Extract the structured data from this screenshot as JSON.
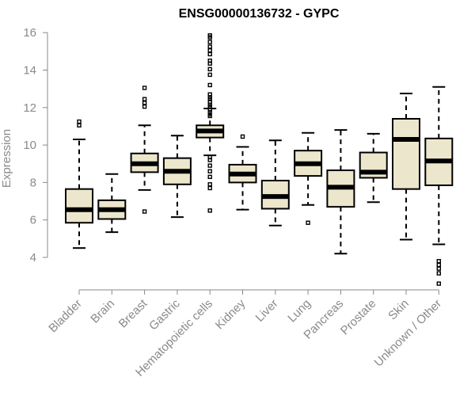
{
  "chart_data": {
    "type": "box",
    "title": "ENSG00000136732 - GYPC",
    "ylabel": "Expression",
    "xlabel": "",
    "ylim": [
      3.5,
      16.2
    ],
    "yticks": [
      4,
      6,
      8,
      10,
      12,
      14,
      16
    ],
    "fill_color": "#ece6cc",
    "grid": false,
    "categories": [
      {
        "label": "Bladder",
        "whisker_low": 4.5,
        "q1": 5.85,
        "median": 6.55,
        "q3": 7.65,
        "whisker_high": 10.3,
        "outliers": [
          11.05,
          11.25
        ]
      },
      {
        "label": "Brain",
        "whisker_low": 5.35,
        "q1": 6.05,
        "median": 6.55,
        "q3": 7.05,
        "whisker_high": 8.45,
        "outliers": []
      },
      {
        "label": "Breast",
        "whisker_low": 7.6,
        "q1": 8.55,
        "median": 9.0,
        "q3": 9.55,
        "whisker_high": 11.05,
        "outliers": [
          6.45,
          12.05,
          12.25,
          12.45,
          13.05
        ]
      },
      {
        "label": "Gastric",
        "whisker_low": 6.15,
        "q1": 7.9,
        "median": 8.6,
        "q3": 9.3,
        "whisker_high": 10.5,
        "outliers": []
      },
      {
        "label": "Hematopoietic cells",
        "whisker_low": 9.45,
        "q1": 10.4,
        "median": 10.75,
        "q3": 11.05,
        "whisker_high": 11.95,
        "outliers": [
          6.5,
          7.7,
          7.9,
          8.3,
          8.6,
          8.9,
          9.2,
          9.35,
          11.55,
          11.75,
          11.9,
          12.05,
          12.15,
          12.3,
          12.45,
          12.55,
          12.7,
          13.2,
          13.75,
          14.05,
          14.35,
          14.5,
          14.85,
          15.05,
          15.25,
          15.5,
          15.75,
          15.85
        ]
      },
      {
        "label": "Kidney",
        "whisker_low": 6.55,
        "q1": 8.0,
        "median": 8.45,
        "q3": 8.95,
        "whisker_high": 9.9,
        "outliers": [
          10.45
        ]
      },
      {
        "label": "Liver",
        "whisker_low": 5.7,
        "q1": 6.6,
        "median": 7.25,
        "q3": 8.1,
        "whisker_high": 10.25,
        "outliers": []
      },
      {
        "label": "Lung",
        "whisker_low": 6.8,
        "q1": 8.35,
        "median": 9.0,
        "q3": 9.7,
        "whisker_high": 10.65,
        "outliers": [
          5.85
        ]
      },
      {
        "label": "Pancreas",
        "whisker_low": 4.2,
        "q1": 6.7,
        "median": 7.75,
        "q3": 8.65,
        "whisker_high": 10.8,
        "outliers": []
      },
      {
        "label": "Prostate",
        "whisker_low": 6.95,
        "q1": 8.25,
        "median": 8.55,
        "q3": 9.6,
        "whisker_high": 10.6,
        "outliers": []
      },
      {
        "label": "Skin",
        "whisker_low": 4.95,
        "q1": 7.65,
        "median": 10.3,
        "q3": 11.4,
        "whisker_high": 12.75,
        "outliers": []
      },
      {
        "label": "Unknown / Other",
        "whisker_low": 4.7,
        "q1": 7.85,
        "median": 9.15,
        "q3": 10.35,
        "whisker_high": 13.1,
        "outliers": [
          2.6,
          3.15,
          3.4,
          3.6,
          3.8
        ]
      }
    ]
  }
}
